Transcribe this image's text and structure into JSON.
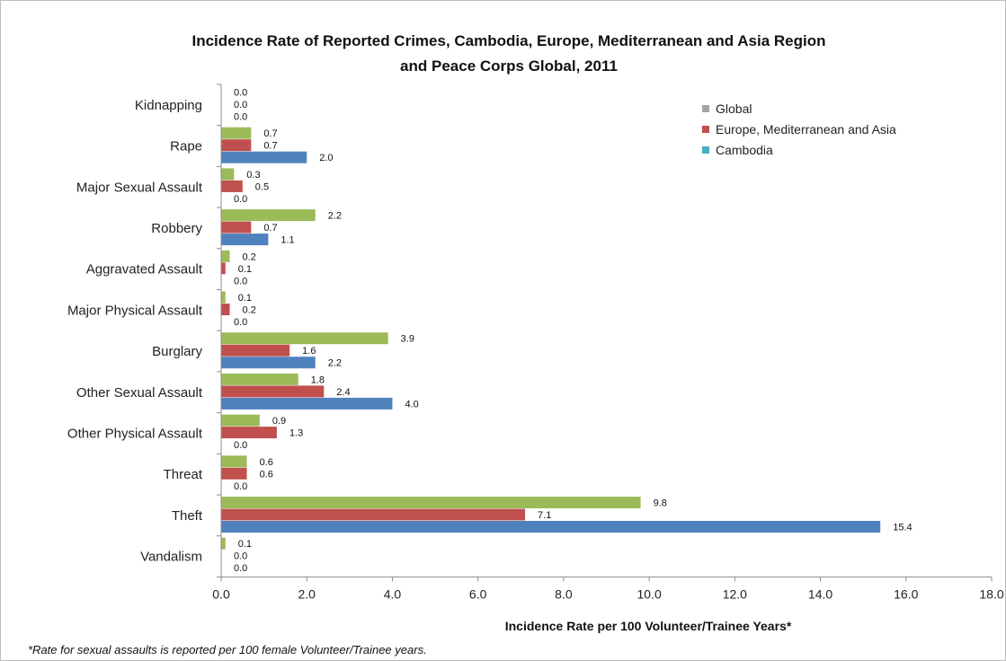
{
  "chart_data": {
    "type": "bar",
    "orientation": "horizontal",
    "title_lines": [
      "Incidence Rate of Reported Crimes, Cambodia, Europe, Mediterranean and Asia Region",
      "and Peace Corps Global, 2011"
    ],
    "xlabel": "Incidence Rate per 100 Volunteer/Trainee Years*",
    "footnote": "*Rate for sexual assaults is reported per 100 female Volunteer/Trainee years.",
    "xlim": [
      0,
      18
    ],
    "x_ticks": [
      "0.0",
      "2.0",
      "4.0",
      "6.0",
      "8.0",
      "10.0",
      "12.0",
      "14.0",
      "16.0",
      "18.0"
    ],
    "grid": false,
    "legend_position": "top-right",
    "categories": [
      "Kidnapping",
      "Rape",
      "Major Sexual Assault",
      "Robbery",
      "Aggravated Assault",
      "Major Physical Assault",
      "Burglary",
      "Other Sexual Assault",
      "Other Physical Assault",
      "Threat",
      "Theft",
      "Vandalism"
    ],
    "series": [
      {
        "name": "Global",
        "color": "#9bbb59",
        "legend_color": "#a5a5a5",
        "values": [
          0.0,
          0.7,
          0.3,
          2.2,
          0.2,
          0.1,
          3.9,
          1.8,
          0.9,
          0.6,
          9.8,
          0.1
        ],
        "labels": [
          "0.0",
          "0.7",
          "0.3",
          "2.2",
          "0.2",
          "0.1",
          "3.9",
          "1.8",
          "0.9",
          "0.6",
          "9.8",
          "0.1"
        ]
      },
      {
        "name": "Europe, Mediterranean and Asia",
        "color": "#c0504d",
        "legend_color": "#c0504d",
        "values": [
          0.0,
          0.7,
          0.5,
          0.7,
          0.1,
          0.2,
          1.6,
          2.4,
          1.3,
          0.6,
          7.1,
          0.0
        ],
        "labels": [
          "0.0",
          "0.7",
          "0.5",
          "0.7",
          "0.1",
          "0.2",
          "1.6",
          "2.4",
          "1.3",
          "0.6",
          "7.1",
          "0.0"
        ]
      },
      {
        "name": "Cambodia",
        "color": "#4f81bd",
        "legend_color": "#4bacc6",
        "values": [
          0.0,
          2.0,
          0.0,
          1.1,
          0.0,
          0.0,
          2.2,
          4.0,
          0.0,
          0.0,
          15.4,
          0.0
        ],
        "labels": [
          "0.0",
          "2.0",
          "0.0",
          "1.1",
          "0.0",
          "0.0",
          "2.2",
          "4.0",
          "0.0",
          "0.0",
          "15.4",
          "0.0"
        ]
      }
    ]
  }
}
